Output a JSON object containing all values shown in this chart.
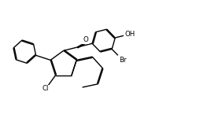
{
  "bg": "#ffffff",
  "lc": "#000000",
  "lw": 1.0,
  "fs": 6.2,
  "doff": 0.04,
  "figsize": [
    2.54,
    1.78
  ],
  "dpi": 100,
  "xlim": [
    -0.2,
    7.8
  ],
  "ylim": [
    -0.3,
    5.8
  ]
}
